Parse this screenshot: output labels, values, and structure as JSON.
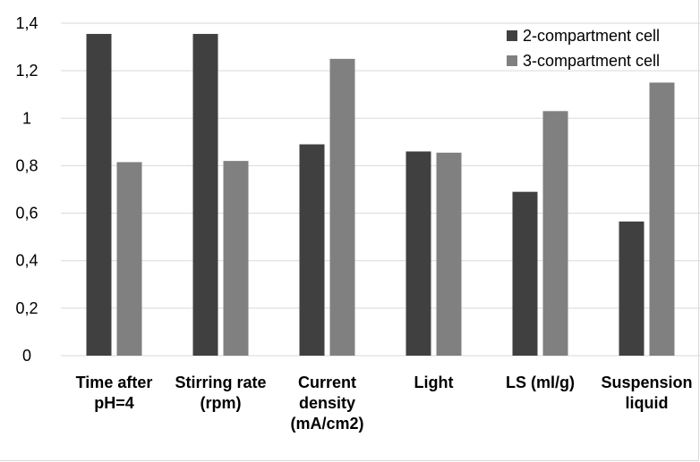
{
  "chart_data": {
    "type": "bar",
    "title": "",
    "xlabel": "",
    "ylabel": "",
    "categories": [
      [
        "Time after",
        "pH=4"
      ],
      [
        "Stirring rate",
        "(rpm)"
      ],
      [
        "Current",
        "density",
        "(mA/cm2)"
      ],
      [
        "Light"
      ],
      [
        "LS (ml/g)"
      ],
      [
        "Suspension",
        "liquid"
      ]
    ],
    "series": [
      {
        "name": "2-compartment cell",
        "color": "#404040",
        "values": [
          1.355,
          1.355,
          0.89,
          0.86,
          0.69,
          0.565
        ]
      },
      {
        "name": "3-compartment cell",
        "color": "#808080",
        "values": [
          0.815,
          0.82,
          1.25,
          0.855,
          1.03,
          1.15
        ]
      }
    ],
    "ylim": [
      0,
      1.4
    ],
    "yticks": [
      "0",
      "0,2",
      "0,4",
      "0,6",
      "0,8",
      "1",
      "1,2",
      "1,4"
    ],
    "ytick_values": [
      0,
      0.2,
      0.4,
      0.6,
      0.8,
      1,
      1.2,
      1.4
    ],
    "grid": true,
    "legend_position": "top-right"
  }
}
